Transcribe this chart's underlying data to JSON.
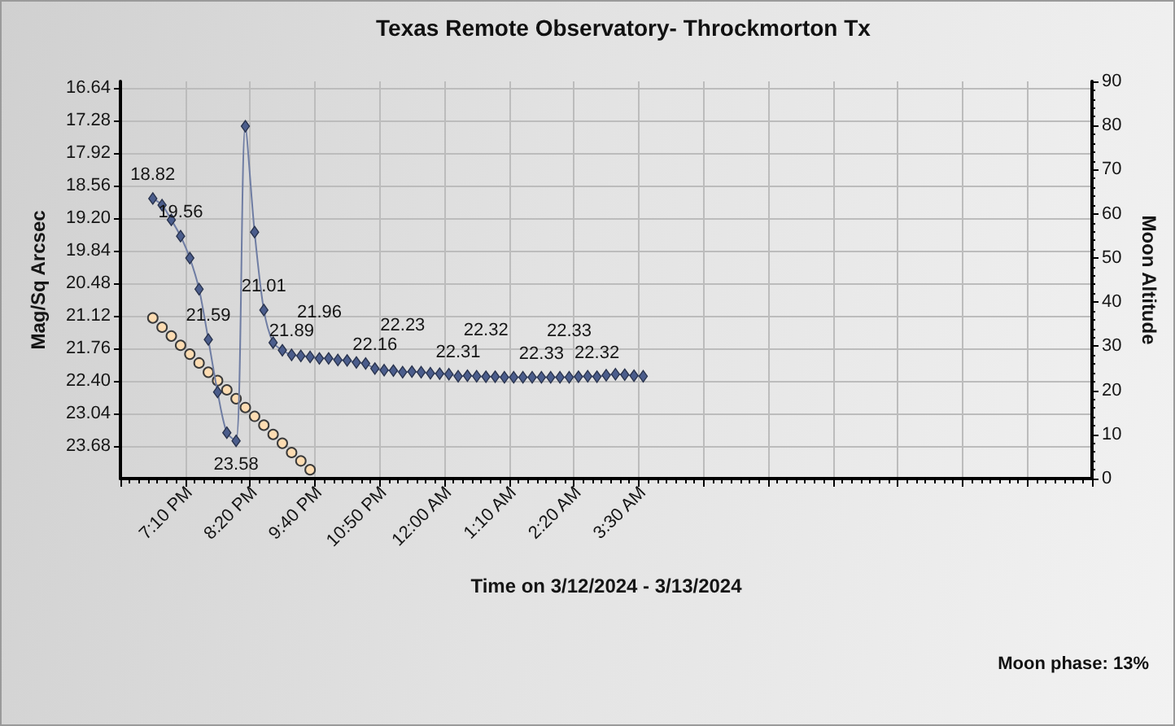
{
  "chart_data": {
    "type": "line",
    "title": "Texas Remote Observatory- Throckmorton Tx",
    "xlabel": "Time on 3/12/2024 - 3/13/2024",
    "ylabel": "Mag/Sq Arcsec",
    "y2label": "Moon Altitude",
    "annotations": [
      "Moon phase: 13%"
    ],
    "categories": [
      null,
      null,
      null,
      null,
      null,
      null,
      null,
      "7:10 PM",
      null,
      null,
      null,
      null,
      null,
      null,
      "8:20 PM",
      null,
      null,
      null,
      null,
      null,
      null,
      "9:40 PM",
      null,
      null,
      null,
      null,
      null,
      null,
      "10:50 PM",
      null,
      null,
      null,
      null,
      null,
      null,
      "12:00 AM",
      null,
      null,
      null,
      null,
      null,
      null,
      "1:10 AM",
      null,
      null,
      null,
      null,
      null,
      null,
      "2:20 AM",
      null,
      null,
      null,
      null,
      null,
      null,
      "3:30 AM",
      null,
      null,
      null,
      null,
      null,
      null,
      null,
      null,
      null,
      null,
      null,
      null,
      null,
      null,
      null,
      null,
      null,
      null,
      null,
      null,
      null,
      null,
      null,
      null,
      null,
      null,
      null,
      null,
      null,
      null,
      null,
      null,
      null,
      null,
      null,
      null,
      null,
      null,
      null,
      null,
      null,
      null,
      null,
      null,
      null,
      null,
      null,
      null
    ],
    "series": [
      {
        "color": "#4b5d8c",
        "marker": "diamond",
        "values": [
          null,
          null,
          null,
          18.82,
          18.95,
          19.24,
          19.56,
          19.99,
          20.6,
          21.59,
          22.62,
          23.42,
          23.58,
          17.4,
          19.48,
          21.01,
          21.65,
          21.8,
          21.89,
          21.91,
          21.93,
          21.96,
          21.96,
          21.99,
          22.0,
          22.04,
          22.06,
          22.16,
          22.19,
          22.2,
          22.23,
          22.22,
          22.23,
          22.25,
          22.26,
          22.27,
          22.31,
          22.3,
          22.31,
          22.32,
          22.32,
          22.33,
          22.33,
          22.33,
          22.33,
          22.33,
          22.33,
          22.33,
          22.33,
          22.32,
          22.31,
          22.32,
          22.29,
          22.27,
          22.28,
          22.3,
          22.31,
          null,
          null,
          null,
          null,
          null,
          null,
          null,
          null,
          null,
          null,
          null,
          null,
          null,
          null,
          null,
          null,
          null,
          null,
          null,
          null,
          null,
          null,
          null,
          null,
          null,
          null,
          null,
          null,
          null,
          null,
          null,
          null,
          null,
          null,
          null,
          null,
          null,
          null,
          null,
          null,
          null,
          null,
          null,
          null,
          null,
          null,
          null,
          null
        ],
        "value_labels": [
          null,
          null,
          null,
          "18.82",
          null,
          null,
          "19.56",
          null,
          null,
          "21.59",
          null,
          null,
          "23.58",
          null,
          null,
          "21.01",
          null,
          null,
          "21.89",
          null,
          null,
          "21.96",
          null,
          null,
          null,
          null,
          null,
          "22.16",
          null,
          null,
          "22.23",
          null,
          null,
          null,
          null,
          null,
          "22.31",
          null,
          null,
          "22.32",
          null,
          null,
          null,
          null,
          null,
          "22.33",
          null,
          null,
          "22.33",
          null,
          null,
          "22.32",
          null,
          null,
          null,
          null,
          null,
          null,
          null,
          null,
          null,
          null,
          null,
          null,
          null,
          null,
          null,
          null,
          null,
          null,
          null,
          null,
          null,
          null,
          null,
          null,
          null,
          null,
          null,
          null,
          null,
          null,
          null,
          null,
          null,
          null,
          null,
          null,
          null,
          null,
          null,
          null,
          null,
          null,
          null,
          null,
          null,
          null,
          null,
          null,
          null,
          null,
          null,
          null,
          null
        ]
      },
      {
        "type": "scatter",
        "axis": "y2",
        "color": "#fddcb2",
        "marker": "circle",
        "values": [
          null,
          null,
          null,
          36.4,
          34.3,
          32.3,
          30.2,
          28.2,
          26.2,
          24.1,
          22.2,
          20.1,
          18.1,
          16.1,
          14.1,
          12.1,
          10.0,
          8.0,
          5.9,
          4.0,
          2.0,
          null,
          null,
          null,
          null,
          null,
          null,
          null,
          null,
          null,
          null,
          null,
          null,
          null,
          null,
          null,
          null,
          null,
          null,
          null,
          null,
          null,
          null,
          null,
          null,
          null,
          null,
          null,
          null,
          null,
          null,
          null,
          null,
          null,
          null,
          null,
          null,
          null,
          null,
          null,
          null,
          null,
          null,
          null,
          null,
          null,
          null,
          null,
          null,
          null,
          null,
          null,
          null,
          null,
          null,
          null,
          null,
          null,
          null,
          null,
          null,
          null,
          null,
          null,
          null,
          null,
          null,
          null,
          null,
          null,
          null,
          null,
          null,
          null,
          null,
          null,
          null,
          null,
          null,
          null,
          null,
          null,
          null,
          null,
          null
        ]
      }
    ],
    "ylim": [
      24.32,
      16.52
    ],
    "yticks": [
      16.64,
      17.28,
      17.92,
      18.56,
      {
        "value": 19.2,
        "label": "19.20"
      },
      19.84,
      20.48,
      21.12,
      21.76,
      {
        "value": 22.4,
        "label": "22.40"
      },
      23.04,
      23.68
    ],
    "y2lim": [
      0,
      90
    ],
    "y2ticks": [
      0,
      10,
      20,
      30,
      40,
      50,
      60,
      70,
      80,
      90
    ],
    "grid": true
  }
}
